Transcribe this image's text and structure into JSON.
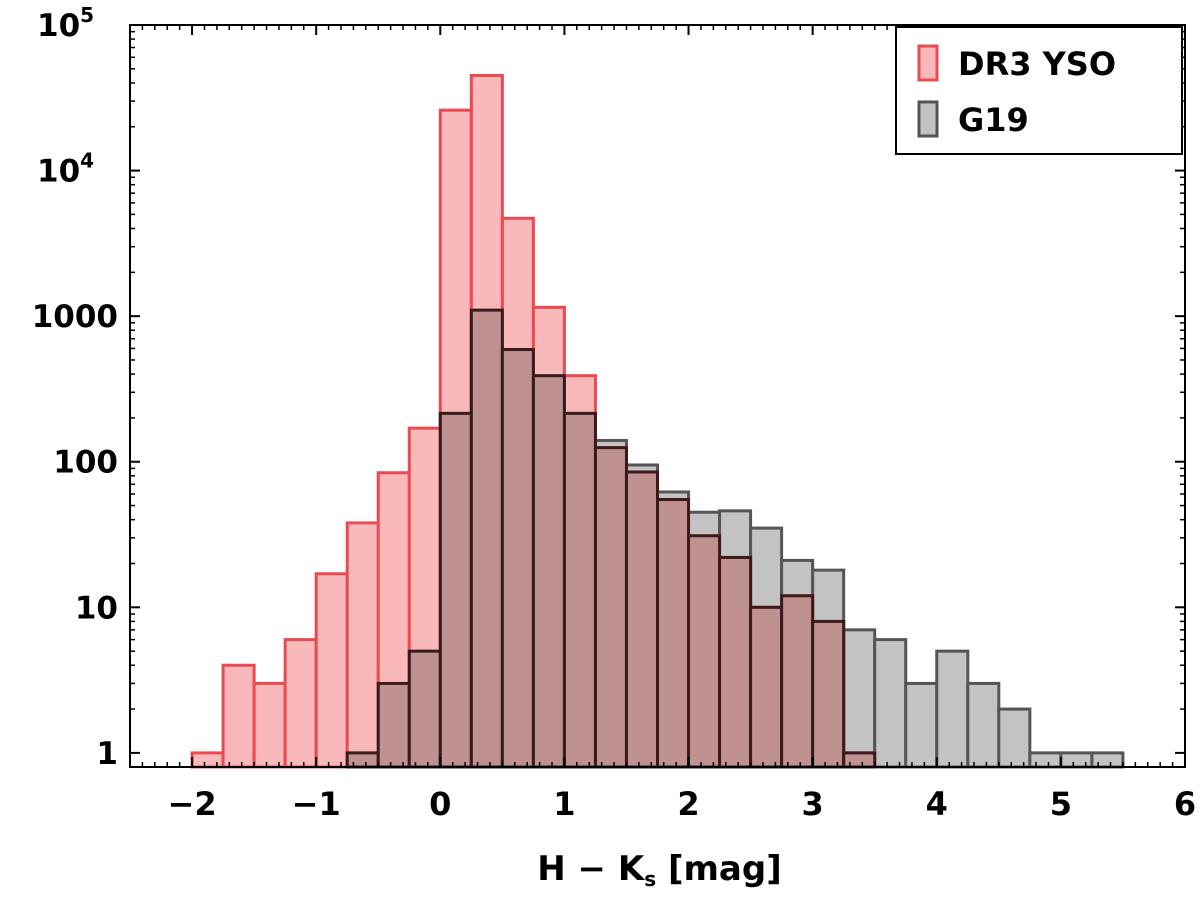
{
  "chart_data": {
    "type": "bar",
    "subtype": "overlaid-histogram",
    "title": "",
    "xlabel": "H − K",
    "xlabel_sub": "s",
    "xlabel_unit": " [mag]",
    "ylabel": "",
    "xlim": [
      -2.5,
      6
    ],
    "ylim": [
      0.8,
      100000
    ],
    "yscale": "log",
    "grid": false,
    "legend": "top-right",
    "bin_width": 0.25,
    "x_ticks": [
      {
        "value": -2,
        "label": "−2"
      },
      {
        "value": -1,
        "label": "−1"
      },
      {
        "value": 0,
        "label": "0"
      },
      {
        "value": 1,
        "label": "1"
      },
      {
        "value": 2,
        "label": "2"
      },
      {
        "value": 3,
        "label": "3"
      },
      {
        "value": 4,
        "label": "4"
      },
      {
        "value": 5,
        "label": "5"
      },
      {
        "value": 6,
        "label": "6"
      }
    ],
    "y_ticks": [
      {
        "value": 1,
        "label": "1"
      },
      {
        "value": 10,
        "label": "10"
      },
      {
        "value": 100,
        "label": "100"
      },
      {
        "value": 1000,
        "label": "1000"
      },
      {
        "value": 10000,
        "label": "10",
        "exponent": "4"
      },
      {
        "value": 100000,
        "label": "10",
        "exponent": "5"
      }
    ],
    "series": [
      {
        "name": "DR3 YSO",
        "fill": "#f9b9bb",
        "stroke": "#ea4b52",
        "bin_starts": [
          -2,
          -1.75,
          -1.5,
          -1.25,
          -1,
          -0.75,
          -0.5,
          -0.25,
          0,
          0.25,
          0.5,
          0.75,
          1,
          1.25,
          1.5,
          1.75,
          2,
          2.25,
          2.5,
          2.75,
          3,
          3.25
        ],
        "values": [
          1,
          4,
          3,
          6,
          17,
          38,
          84,
          170,
          26000,
          45000,
          4700,
          1150,
          390,
          125,
          85,
          55,
          31,
          22,
          10,
          12,
          8,
          1
        ]
      },
      {
        "name": "G19",
        "fill": "#c3c3c3",
        "stroke": "#555555",
        "bin_starts": [
          -0.75,
          -0.5,
          -0.25,
          0,
          0.25,
          0.5,
          0.75,
          1,
          1.25,
          1.5,
          1.75,
          2,
          2.25,
          2.5,
          2.75,
          3,
          3.25,
          3.5,
          3.75,
          4,
          4.25,
          4.5,
          4.75,
          5,
          5.25
        ],
        "values": [
          1,
          3,
          5,
          215,
          1100,
          590,
          390,
          215,
          140,
          95,
          62,
          45,
          46,
          35,
          21,
          18,
          7,
          6,
          3,
          5,
          3,
          2,
          1,
          1,
          1
        ]
      }
    ],
    "overlap_fill": "#bf9191",
    "overlap_stroke": "#3a1a1a"
  }
}
